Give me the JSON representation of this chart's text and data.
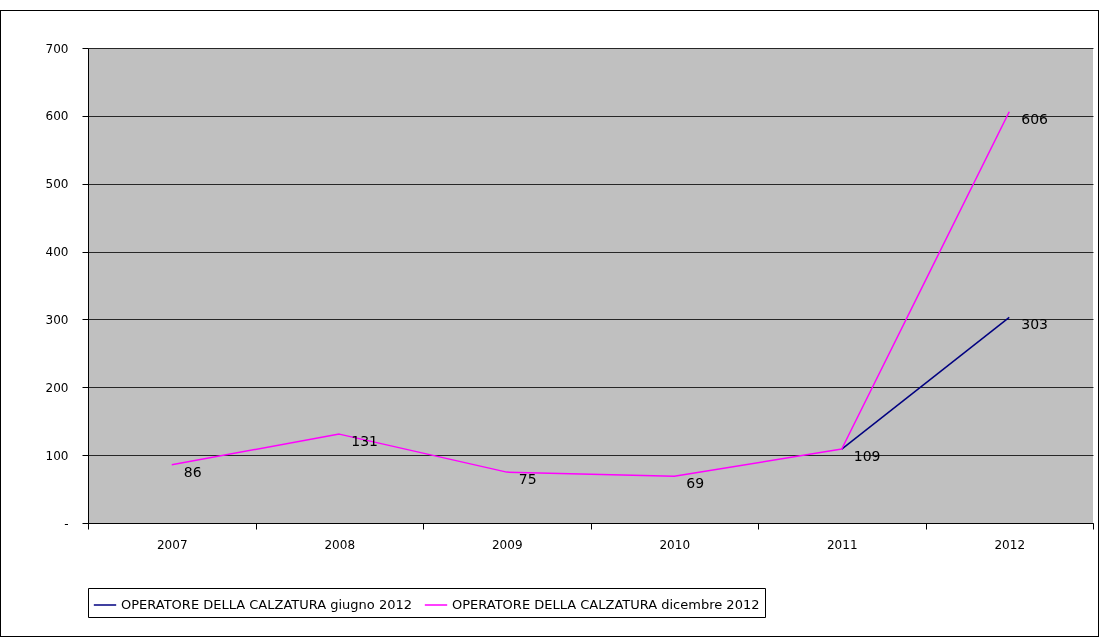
{
  "chart_data": {
    "type": "line",
    "categories": [
      "2007",
      "2008",
      "2009",
      "2010",
      "2011",
      "2012"
    ],
    "series": [
      {
        "name": "OPERATORE DELLA CALZATURA giugno 2012",
        "color": "#000080",
        "values": [
          null,
          null,
          null,
          null,
          109,
          303
        ],
        "value_labels": [
          null,
          null,
          null,
          null,
          null,
          "303"
        ]
      },
      {
        "name": "OPERATORE DELLA CALZATURA dicembre 2012",
        "color": "#ff00ff",
        "values": [
          86,
          131,
          75,
          69,
          109,
          606
        ],
        "value_labels": [
          "86",
          "131",
          "75",
          "69",
          "109",
          "606"
        ]
      }
    ],
    "ylim": [
      0,
      700
    ],
    "yticks": [
      {
        "value": 0,
        "label": "-"
      },
      100,
      200,
      300,
      400,
      500,
      600,
      700
    ],
    "grid": "y",
    "legend": "bottom",
    "marker": "none",
    "line_style": "solid"
  }
}
